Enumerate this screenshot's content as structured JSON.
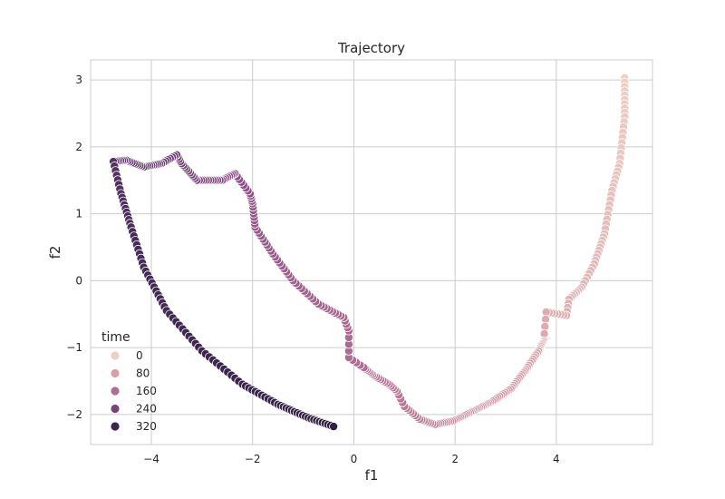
{
  "chart_data": {
    "type": "scatter",
    "title": "Trajectory",
    "xlabel": "f1",
    "ylabel": "f2",
    "xlim": [
      -5.2,
      5.9
    ],
    "ylim": [
      -2.45,
      3.3
    ],
    "xticks": [
      -4,
      -2,
      0,
      2,
      4
    ],
    "yticks": [
      -2,
      -1,
      0,
      1,
      2,
      3
    ],
    "xtick_labels": [
      "−4",
      "−2",
      "0",
      "2",
      "4"
    ],
    "ytick_labels": [
      "−2",
      "−1",
      "0",
      "1",
      "2",
      "3"
    ],
    "grid": true,
    "hue": "time",
    "time_range": [
      0,
      360
    ],
    "legend": {
      "title": "time",
      "placement": "lower-left",
      "entries": [
        {
          "label": "0",
          "value": 0
        },
        {
          "label": "80",
          "value": 80
        },
        {
          "label": "160",
          "value": 160
        },
        {
          "label": "240",
          "value": 240
        },
        {
          "label": "320",
          "value": 320
        }
      ]
    },
    "palette": [
      "#ecd0c4",
      "#d9a5ac",
      "#b87794",
      "#8f5188",
      "#4a2c5b",
      "#2d1e3e"
    ],
    "trajectory_keypoints": [
      {
        "t": 0,
        "x": 5.35,
        "y": 3.03
      },
      {
        "t": 8,
        "x": 5.35,
        "y": 2.45
      },
      {
        "t": 16,
        "x": 5.25,
        "y": 1.75
      },
      {
        "t": 22,
        "x": 5.1,
        "y": 1.35
      },
      {
        "t": 30,
        "x": 4.95,
        "y": 0.7
      },
      {
        "t": 38,
        "x": 4.75,
        "y": 0.25
      },
      {
        "t": 44,
        "x": 4.5,
        "y": -0.1
      },
      {
        "t": 50,
        "x": 4.25,
        "y": -0.28
      },
      {
        "t": 54,
        "x": 4.2,
        "y": -0.52
      },
      {
        "t": 60,
        "x": 3.8,
        "y": -0.47
      },
      {
        "t": 64,
        "x": 3.75,
        "y": -0.9
      },
      {
        "t": 70,
        "x": 3.65,
        "y": -1.05
      },
      {
        "t": 78,
        "x": 3.4,
        "y": -1.33
      },
      {
        "t": 88,
        "x": 3.1,
        "y": -1.62
      },
      {
        "t": 98,
        "x": 2.7,
        "y": -1.82
      },
      {
        "t": 110,
        "x": 2.3,
        "y": -1.97
      },
      {
        "t": 120,
        "x": 1.95,
        "y": -2.1
      },
      {
        "t": 128,
        "x": 1.6,
        "y": -2.15
      },
      {
        "t": 134,
        "x": 1.3,
        "y": -2.07
      },
      {
        "t": 140,
        "x": 1.0,
        "y": -1.88
      },
      {
        "t": 144,
        "x": 0.85,
        "y": -1.65
      },
      {
        "t": 148,
        "x": 0.7,
        "y": -1.55
      },
      {
        "t": 154,
        "x": 0.4,
        "y": -1.42
      },
      {
        "t": 160,
        "x": 0.2,
        "y": -1.3
      },
      {
        "t": 164,
        "x": -0.1,
        "y": -1.15
      },
      {
        "t": 168,
        "x": -0.1,
        "y": -0.75
      },
      {
        "t": 172,
        "x": -0.2,
        "y": -0.55
      },
      {
        "t": 180,
        "x": -0.7,
        "y": -0.35
      },
      {
        "t": 188,
        "x": -1.2,
        "y": 0.0
      },
      {
        "t": 196,
        "x": -1.6,
        "y": 0.4
      },
      {
        "t": 204,
        "x": -1.95,
        "y": 0.8
      },
      {
        "t": 210,
        "x": -2.0,
        "y": 1.15
      },
      {
        "t": 214,
        "x": -2.05,
        "y": 1.3
      },
      {
        "t": 220,
        "x": -2.35,
        "y": 1.6
      },
      {
        "t": 226,
        "x": -2.6,
        "y": 1.5
      },
      {
        "t": 236,
        "x": -3.1,
        "y": 1.5
      },
      {
        "t": 244,
        "x": -3.4,
        "y": 1.75
      },
      {
        "t": 248,
        "x": -3.5,
        "y": 1.88
      },
      {
        "t": 254,
        "x": -3.8,
        "y": 1.75
      },
      {
        "t": 262,
        "x": -4.15,
        "y": 1.7
      },
      {
        "t": 270,
        "x": -4.5,
        "y": 1.8
      },
      {
        "t": 276,
        "x": -4.75,
        "y": 1.78
      },
      {
        "t": 282,
        "x": -4.6,
        "y": 1.3
      },
      {
        "t": 290,
        "x": -4.4,
        "y": 0.8
      },
      {
        "t": 298,
        "x": -4.15,
        "y": 0.2
      },
      {
        "t": 308,
        "x": -3.7,
        "y": -0.45
      },
      {
        "t": 318,
        "x": -3.0,
        "y": -1.05
      },
      {
        "t": 328,
        "x": -2.2,
        "y": -1.55
      },
      {
        "t": 338,
        "x": -1.5,
        "y": -1.85
      },
      {
        "t": 348,
        "x": -0.9,
        "y": -2.05
      },
      {
        "t": 356,
        "x": -0.4,
        "y": -2.18
      }
    ]
  }
}
